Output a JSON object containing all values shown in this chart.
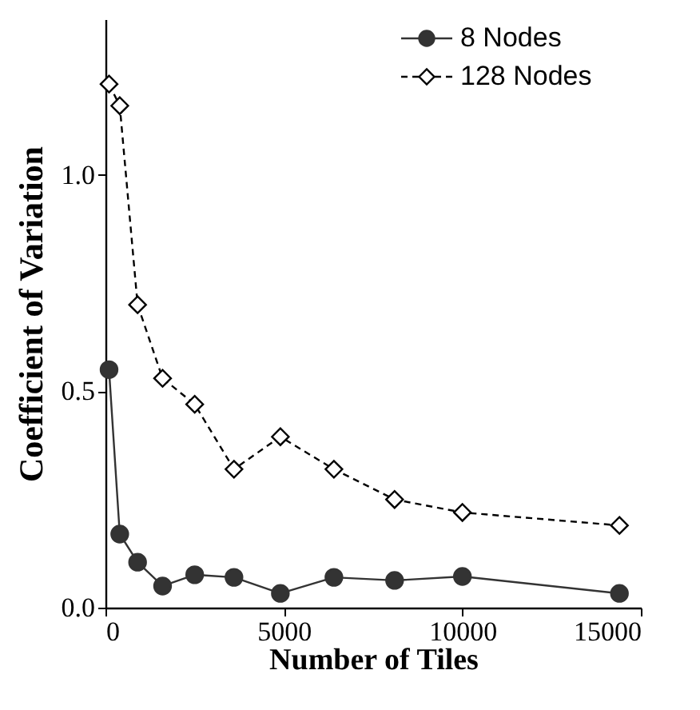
{
  "chart_data": {
    "type": "line",
    "xlabel": "Number of Tiles",
    "ylabel": "Coefficient of Variation",
    "x": [
      100,
      400,
      900,
      1600,
      2500,
      3600,
      4900,
      6400,
      8100,
      10000,
      14400
    ],
    "series": [
      {
        "name": "8 Nodes",
        "color": "#333333",
        "marker": "circle",
        "line_style": "solid",
        "values": [
          0.55,
          0.17,
          0.105,
          0.05,
          0.076,
          0.07,
          0.033,
          0.07,
          0.063,
          0.072,
          0.033
        ]
      },
      {
        "name": "128 Nodes",
        "color": "#000000",
        "marker": "diamond",
        "line_style": "dashed",
        "values": [
          1.21,
          1.16,
          0.7,
          0.53,
          0.47,
          0.32,
          0.395,
          0.32,
          0.25,
          0.22,
          0.19
        ]
      }
    ],
    "xlim": [
      0,
      15000
    ],
    "xticks": [
      0,
      5000,
      10000,
      15000
    ],
    "ylim": [
      0,
      1.36
    ],
    "yticks": [
      {
        "value": 0,
        "label": "0.0"
      },
      {
        "value": 0.5,
        "label": "0.5"
      },
      {
        "value": 1.0,
        "label": "1.0"
      }
    ],
    "grid": false,
    "legend": "top right"
  }
}
